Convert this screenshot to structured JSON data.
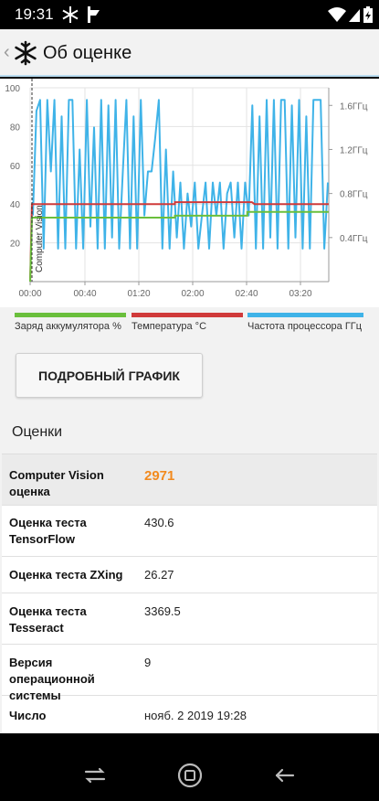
{
  "status_bar": {
    "time": "19:31",
    "icons": [
      "snowflake-icon",
      "notification-flag-icon",
      "wifi-icon",
      "signal-icon",
      "battery-charging-icon"
    ]
  },
  "app_bar": {
    "title": "Об оценке",
    "back_icon": "chevron-left-icon",
    "logo_icon": "snowflake-icon"
  },
  "chart_data": {
    "type": "line",
    "x_ticks": [
      "00:00",
      "00:40",
      "01:20",
      "02:00",
      "02:40",
      "03:20"
    ],
    "y_left_ticks": [
      "100",
      "80",
      "60",
      "40",
      "20"
    ],
    "y_right_ticks": [
      "1.6ГГц",
      "1.2ГГц",
      "0.8ГГц",
      "0.4ГГц"
    ],
    "ylim_left": [
      0,
      100
    ],
    "marker_label": "Computer Vision",
    "grid": true,
    "series": [
      {
        "name": "Заряд аккумулятора %",
        "color": "#6abf3c",
        "axis": "left",
        "points": [
          [
            0,
            0
          ],
          [
            2,
            33
          ],
          [
            70,
            33
          ],
          [
            160,
            33
          ],
          [
            160,
            34
          ],
          [
            240,
            34
          ],
          [
            240,
            36
          ],
          [
            330,
            36
          ]
        ]
      },
      {
        "name": "Температура °C",
        "color": "#d03a3a",
        "axis": "left",
        "points": [
          [
            0,
            0
          ],
          [
            2,
            40
          ],
          [
            80,
            40
          ],
          [
            160,
            40
          ],
          [
            160,
            41
          ],
          [
            245,
            41
          ],
          [
            248,
            40
          ],
          [
            330,
            40
          ]
        ]
      },
      {
        "name": "Частота процессора ГГц",
        "color": "#3fb3e8",
        "axis": "right",
        "values": [
          0.6,
          1.55,
          1.65,
          0.3,
          1.65,
          1.0,
          1.65,
          0.3,
          1.5,
          0.3,
          1.65,
          1.65,
          0.3,
          1.2,
          0.3,
          1.65,
          0.5,
          1.4,
          0.3,
          1.65,
          0.3,
          1.6,
          0.4,
          1.65,
          0.3,
          1.0,
          1.65,
          0.3,
          1.5,
          0.3,
          1.65,
          0.6,
          1.0,
          1.0,
          1.3,
          1.65,
          0.3,
          1.2,
          0.3,
          1.0,
          0.4,
          0.9,
          0.3,
          0.8,
          0.5,
          0.9,
          0.3,
          0.6,
          0.9,
          0.3,
          0.9,
          0.6,
          0.9,
          0.3,
          0.8,
          0.9,
          0.4,
          0.9,
          0.3,
          0.9,
          0.6,
          1.6,
          0.3,
          1.5,
          0.3,
          1.65,
          0.4,
          1.65,
          0.3,
          1.65,
          1.65,
          0.3,
          1.6,
          0.4,
          1.65,
          0.3,
          1.5,
          0.3,
          1.65,
          1.65,
          1.65,
          0.3,
          0.9
        ]
      }
    ]
  },
  "legend": [
    {
      "label": "Заряд аккумулятора %",
      "color": "#6abf3c"
    },
    {
      "label": "Температура °C",
      "color": "#d03a3a"
    },
    {
      "label": "Частота процессора ГГц",
      "color": "#3fb3e8"
    }
  ],
  "button": {
    "label": "ПОДРОБНЫЙ ГРАФИК"
  },
  "section": {
    "title": "Оценки"
  },
  "scores": [
    {
      "label": "Computer Vision оценка",
      "value": "2971"
    },
    {
      "label": "Оценка теста TensorFlow",
      "value": "430.6"
    },
    {
      "label": "Оценка теста ZXing",
      "value": "26.27"
    },
    {
      "label": "Оценка теста Tesseract",
      "value": "3369.5"
    },
    {
      "label": "Версия операционной системы",
      "value": "9"
    },
    {
      "label": "Число",
      "value": "нояб. 2 2019 19:28"
    }
  ],
  "nav_bar": {
    "icons": [
      "recent-apps-icon",
      "home-icon",
      "back-arrow-icon"
    ]
  }
}
